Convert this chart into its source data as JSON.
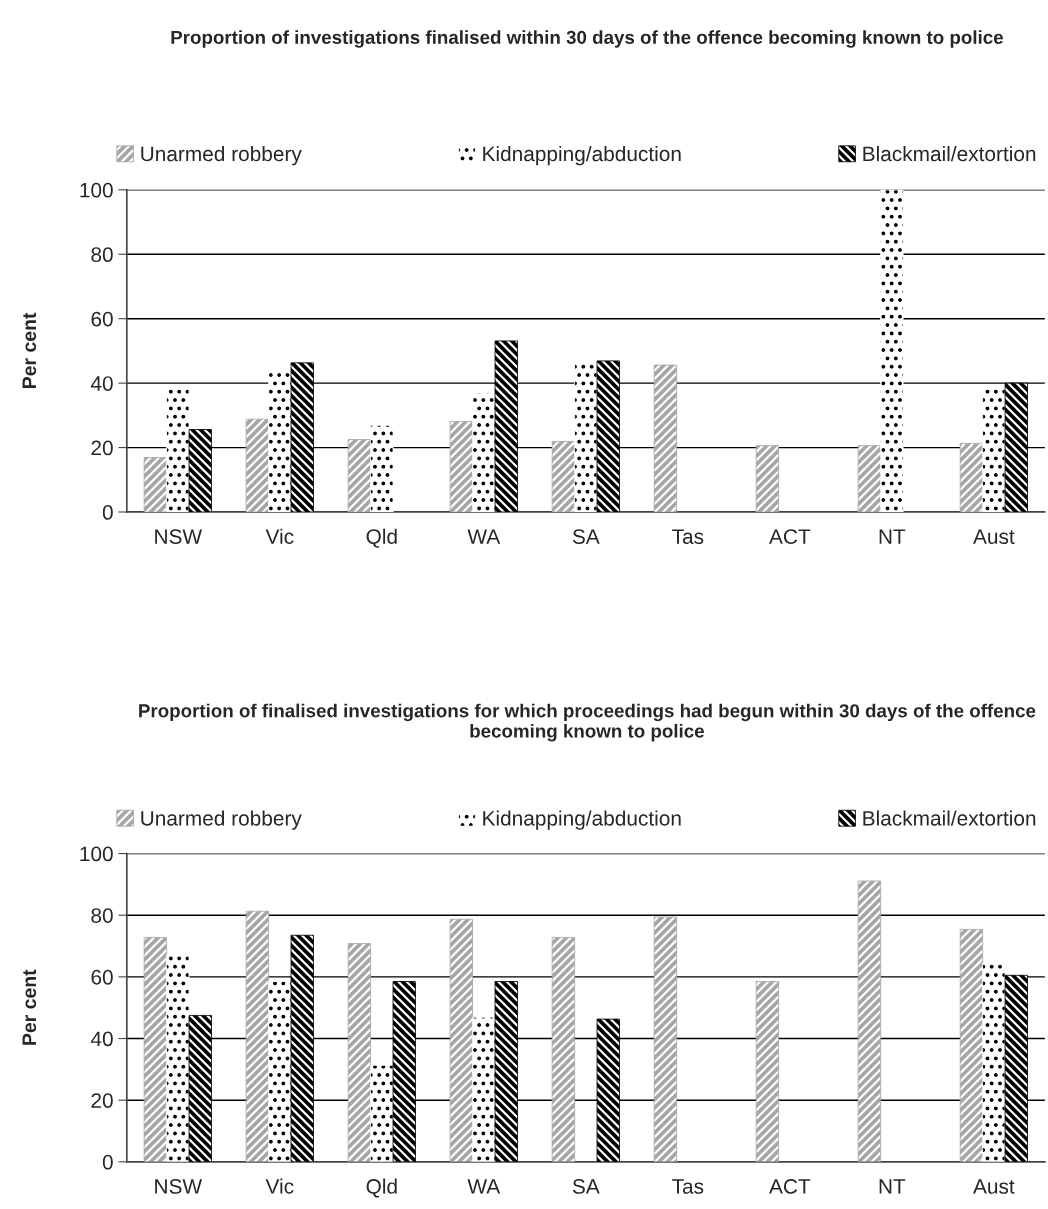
{
  "chart_data": [
    {
      "type": "bar",
      "title": "Proportion of investigations finalised within 30 days of the offence becoming known to police",
      "ylabel": "Per cent",
      "categories": [
        "NSW",
        "Vic",
        "Qld",
        "WA",
        "SA",
        "Tas",
        "ACT",
        "NT",
        "Aust"
      ],
      "series": [
        {
          "name": "Unarmed robbery",
          "color": "#a6a6a6",
          "values": [
            16.9,
            28.8,
            22.5,
            28.1,
            21.9,
            45.6,
            20.6,
            20.6,
            21.3
          ]
        },
        {
          "name": "Kidnapping/abduction",
          "color": "#ffffff",
          "values": [
            38.1,
            43.8,
            26.9,
            36.9,
            46.3,
            null,
            null,
            100,
            38.8
          ]
        },
        {
          "name": "Blackmail/extortion",
          "color": "#000000",
          "values": [
            25.6,
            46.3,
            null,
            53.1,
            46.9,
            null,
            null,
            null,
            40.0
          ]
        }
      ],
      "ylim": [
        0,
        100
      ],
      "yticks": [
        0,
        20,
        40,
        60,
        80,
        100
      ],
      "grid": "y",
      "legend": "top"
    },
    {
      "type": "bar",
      "title": "Proportion of finalised investigations for which proceedings had begun within 30 days of the offence becoming known to police",
      "ylabel": "Per cent",
      "categories": [
        "NSW",
        "Vic",
        "Qld",
        "WA",
        "SA",
        "Tas",
        "ACT",
        "NT",
        "Aust"
      ],
      "series": [
        {
          "name": "Unarmed robbery",
          "color": "#a6a6a6",
          "values": [
            72.8,
            81.3,
            70.8,
            78.7,
            72.8,
            79.4,
            58.5,
            91.1,
            75.4
          ]
        },
        {
          "name": "Kidnapping/abduction",
          "color": "#ffffff",
          "values": [
            67.0,
            58.5,
            31.3,
            46.9,
            null,
            null,
            null,
            null,
            64.4
          ]
        },
        {
          "name": "Blackmail/extortion",
          "color": "#000000",
          "values": [
            47.5,
            73.5,
            58.5,
            58.5,
            46.3,
            null,
            null,
            null,
            60.5
          ]
        }
      ],
      "ylim": [
        0,
        100
      ],
      "yticks": [
        0,
        20,
        40,
        60,
        80,
        100
      ],
      "grid": "y",
      "legend": "top"
    }
  ]
}
